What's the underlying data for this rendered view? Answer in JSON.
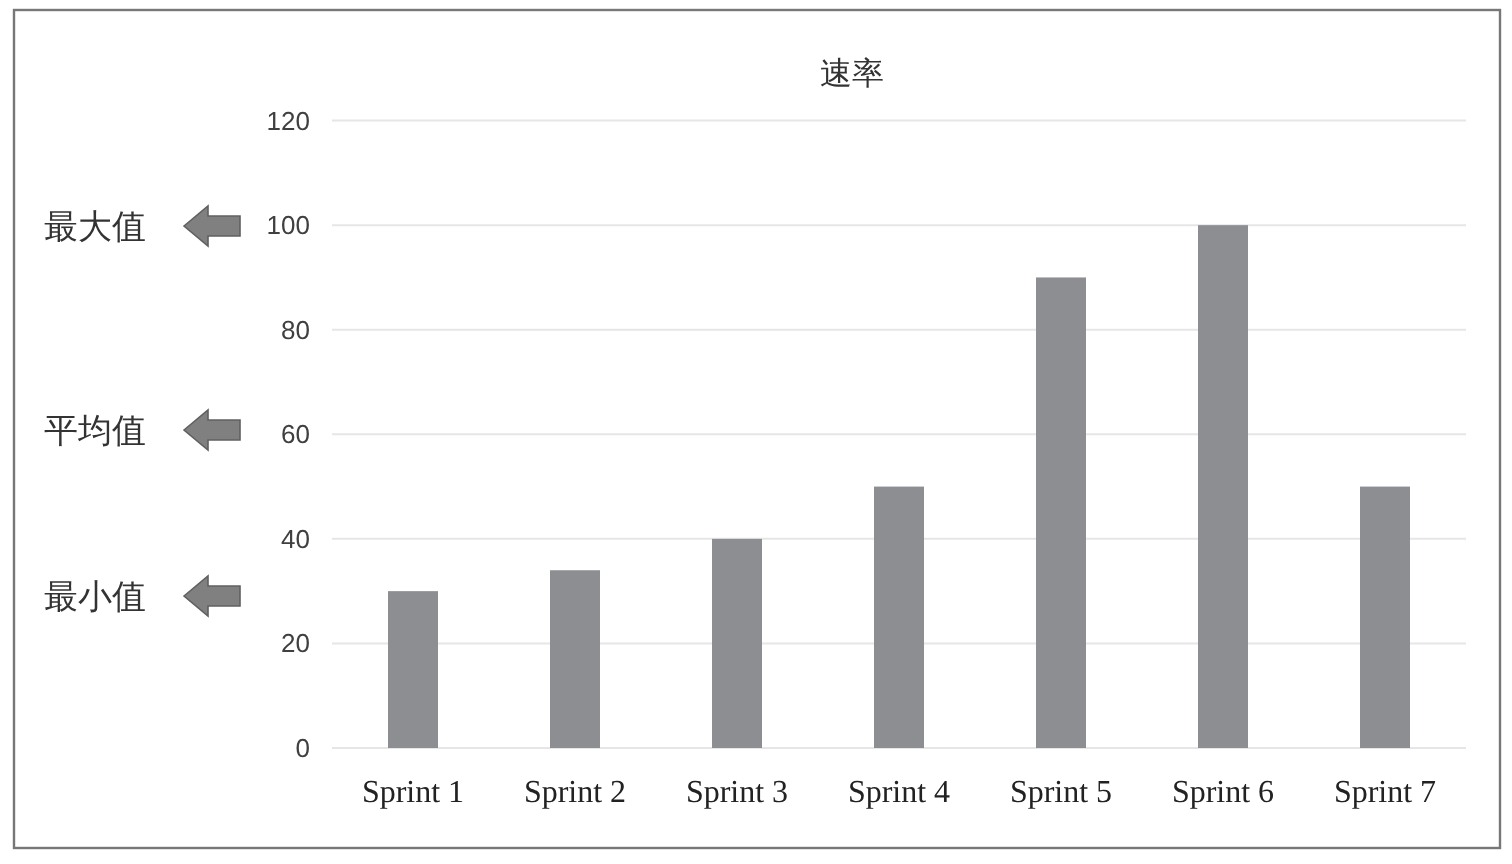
{
  "chart_data": {
    "type": "bar",
    "title": "速率",
    "categories": [
      "Sprint 1",
      "Sprint 2",
      "Sprint 3",
      "Sprint 4",
      "Sprint 5",
      "Sprint 6",
      "Sprint 7"
    ],
    "values": [
      30,
      34,
      40,
      50,
      90,
      100,
      50
    ],
    "color": "#8d8e92",
    "ylim": [
      0,
      120
    ],
    "yticks": [
      0,
      20,
      40,
      60,
      80,
      100,
      120
    ],
    "grid": "y",
    "annotations": [
      "最大值",
      "平均值",
      "最小值"
    ]
  }
}
